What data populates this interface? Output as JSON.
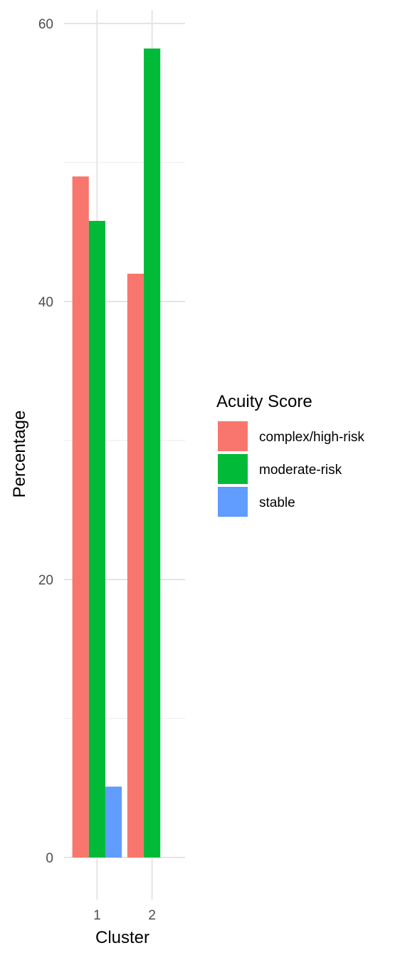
{
  "chart_data": {
    "type": "bar",
    "title": "",
    "xlabel": "Cluster",
    "ylabel": "Percentage",
    "categories": [
      "1",
      "2"
    ],
    "ylim": [
      -2.8,
      61
    ],
    "yticks": [
      0,
      20,
      40,
      60
    ],
    "grid": true,
    "legend": {
      "title": "Acuity Score",
      "position": "right"
    },
    "series": [
      {
        "name": "complex/high-risk",
        "color": "#F8766D",
        "values": [
          49,
          42
        ]
      },
      {
        "name": "moderate-risk",
        "color": "#00BA38",
        "values": [
          45.8,
          58.2
        ]
      },
      {
        "name": "stable",
        "color": "#619CFF",
        "values": [
          5.1,
          0
        ]
      }
    ]
  }
}
